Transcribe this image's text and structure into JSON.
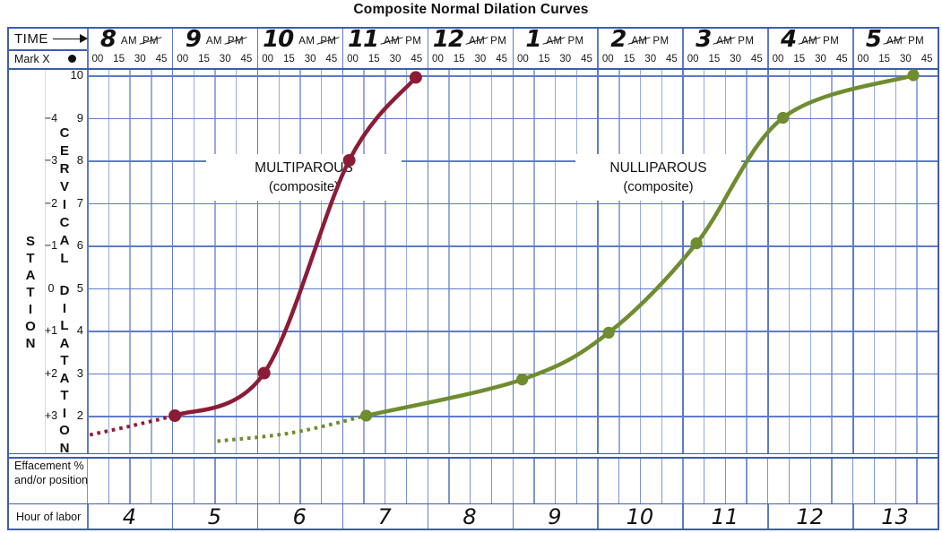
{
  "title": "Composite Normal Dilation Curves",
  "colors": {
    "grid_light": "#97abdd",
    "grid_hour": "#5e7bc7",
    "border": "#3e5dab",
    "multiparous": "#8c1c36",
    "nulliparous": "#6f8c2f",
    "text": "#111111"
  },
  "header": {
    "time_label": "TIME",
    "mark_label": "Mark X",
    "am_label": "AM",
    "pm_label": "PM",
    "minute_labels": [
      "00",
      "15",
      "30",
      "45"
    ],
    "hours": [
      {
        "label": "8",
        "struck": "PM"
      },
      {
        "label": "9",
        "struck": "PM"
      },
      {
        "label": "10",
        "struck": "PM"
      },
      {
        "label": "11",
        "struck": "AM"
      },
      {
        "label": "12",
        "struck": "AM"
      },
      {
        "label": "1",
        "struck": "AM"
      },
      {
        "label": "2",
        "struck": "AM"
      },
      {
        "label": "3",
        "struck": "AM"
      },
      {
        "label": "4",
        "struck": "AM"
      },
      {
        "label": "5",
        "struck": "AM"
      }
    ]
  },
  "left_axis": {
    "station_word": "STATION",
    "station_values": [
      "−4",
      "−3",
      "−2",
      "−1",
      "0",
      "+1",
      "+2",
      "+3"
    ],
    "cervical_word": "CERVICAL",
    "dilatation_word": "DILATATION",
    "dilation_values": [
      "10",
      "9",
      "8",
      "7",
      "6",
      "5",
      "4",
      "3",
      "2"
    ]
  },
  "annotations": {
    "multiparous": {
      "line1": "MULTIPAROUS",
      "line2": "(composite)"
    },
    "nulliparous": {
      "line1": "NULLIPAROUS",
      "line2": "(composite)"
    }
  },
  "footer": {
    "effacement_label_line1": "Effacement %",
    "effacement_label_line2": "and/or position",
    "hour_of_labor_label": "Hour of labor",
    "hours_of_labor": [
      "4",
      "5",
      "6",
      "7",
      "8",
      "9",
      "10",
      "11",
      "12",
      "13"
    ]
  },
  "chart_data": {
    "type": "line",
    "title": "Composite Normal Dilation Curves",
    "x_axis": {
      "label": "TIME",
      "start": "8:00 AM",
      "end": "6:00 PM",
      "tick_interval_minutes": 15
    },
    "y_axis": {
      "label": "CERVICAL DILATATION (cm)",
      "min": 2,
      "max": 10,
      "ticks": [
        10,
        9,
        8,
        7,
        6,
        5,
        4,
        3,
        2
      ]
    },
    "secondary_y_axis": {
      "label": "STATION",
      "ticks": [
        "-4",
        "-3",
        "-2",
        "-1",
        "0",
        "+1",
        "+2",
        "+3"
      ]
    },
    "hour_of_labor_axis": {
      "label": "Hour of labor",
      "values": [
        "4",
        "5",
        "6",
        "7",
        "8",
        "9",
        "10",
        "11",
        "12",
        "13"
      ]
    },
    "grid": true,
    "series": [
      {
        "name": "MULTIPAROUS (composite)",
        "color": "#8c1c36",
        "style": "solid with latent dotted tail",
        "points": [
          {
            "time": "9:00 AM",
            "t": 62,
            "dilation": 2.0
          },
          {
            "time": "10:05 AM",
            "t": 125,
            "dilation": 3.0
          },
          {
            "time": "11:05 AM",
            "t": 185,
            "dilation": 8.0
          },
          {
            "time": "11:50 AM",
            "t": 232,
            "dilation": 9.95
          }
        ],
        "latent_dotted": [
          {
            "time": "8:00 AM",
            "t": 2,
            "dilation": 1.55
          },
          {
            "time": "8:30 AM",
            "t": 30,
            "dilation": 1.75
          },
          {
            "time": "9:00 AM",
            "t": 62,
            "dilation": 2.0
          }
        ]
      },
      {
        "name": "NULLIPAROUS (composite)",
        "color": "#6f8c2f",
        "style": "solid with latent dotted tail",
        "points": [
          {
            "time": "11:15 AM",
            "t": 197,
            "dilation": 2.0
          },
          {
            "time": "1:05 PM",
            "t": 307,
            "dilation": 2.85
          },
          {
            "time": "2:10 PM",
            "t": 368,
            "dilation": 3.95
          },
          {
            "time": "3:10 PM",
            "t": 430,
            "dilation": 6.05
          },
          {
            "time": "4:10 PM",
            "t": 491,
            "dilation": 9.0
          },
          {
            "time": "5:40 PM",
            "t": 583,
            "dilation": 10.0
          }
        ],
        "latent_dotted": [
          {
            "time": "9:30 AM",
            "t": 92,
            "dilation": 1.4
          },
          {
            "time": "10:25 AM",
            "t": 145,
            "dilation": 1.6
          },
          {
            "time": "11:15 AM",
            "t": 197,
            "dilation": 2.0
          }
        ]
      }
    ]
  }
}
